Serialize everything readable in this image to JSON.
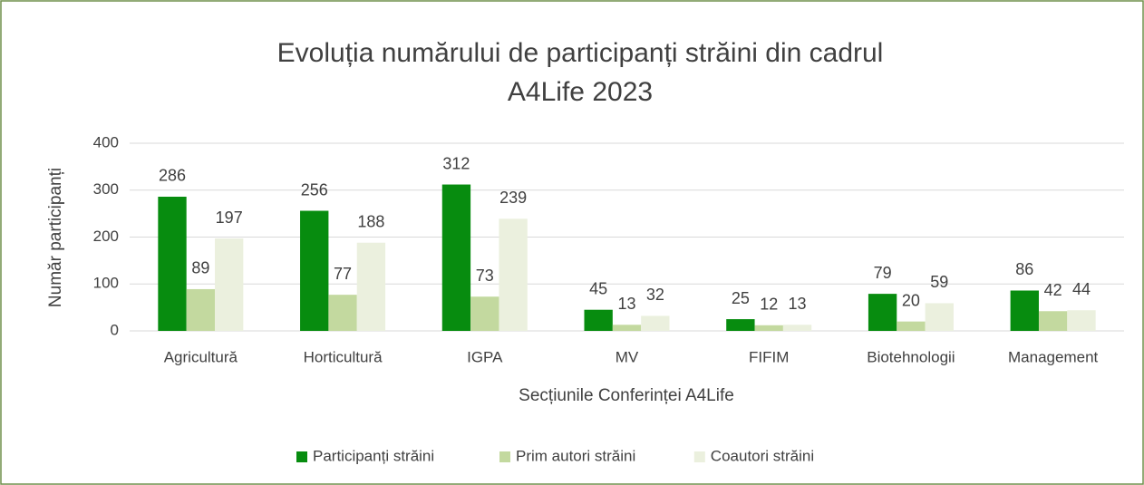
{
  "chart_data": {
    "type": "bar",
    "title": [
      "Evoluția numărului de participanți străini din cadrul",
      "A4Life 2023"
    ],
    "x_label": "Secțiunile Conferinței A4Life",
    "y_label": "Număr participanți",
    "categories": [
      "Agricultură",
      "Horticultură",
      "IGPA",
      "MV",
      "FIFIM",
      "Biotehnologii",
      "Management"
    ],
    "series": [
      {
        "name": "Participanți străini",
        "color": "#078c0f",
        "values": [
          286,
          256,
          312,
          45,
          25,
          79,
          86
        ]
      },
      {
        "name": "Prim autori străini",
        "color": "#c3d99f",
        "values": [
          89,
          77,
          73,
          13,
          12,
          20,
          42
        ]
      },
      {
        "name": "Coautori străini",
        "color": "#ebf0de",
        "values": [
          197,
          188,
          239,
          32,
          13,
          59,
          44
        ]
      }
    ],
    "ylim": [
      0,
      400
    ],
    "yticks": [
      0,
      100,
      200,
      300,
      400
    ],
    "grid": true,
    "legend": "bottom"
  }
}
